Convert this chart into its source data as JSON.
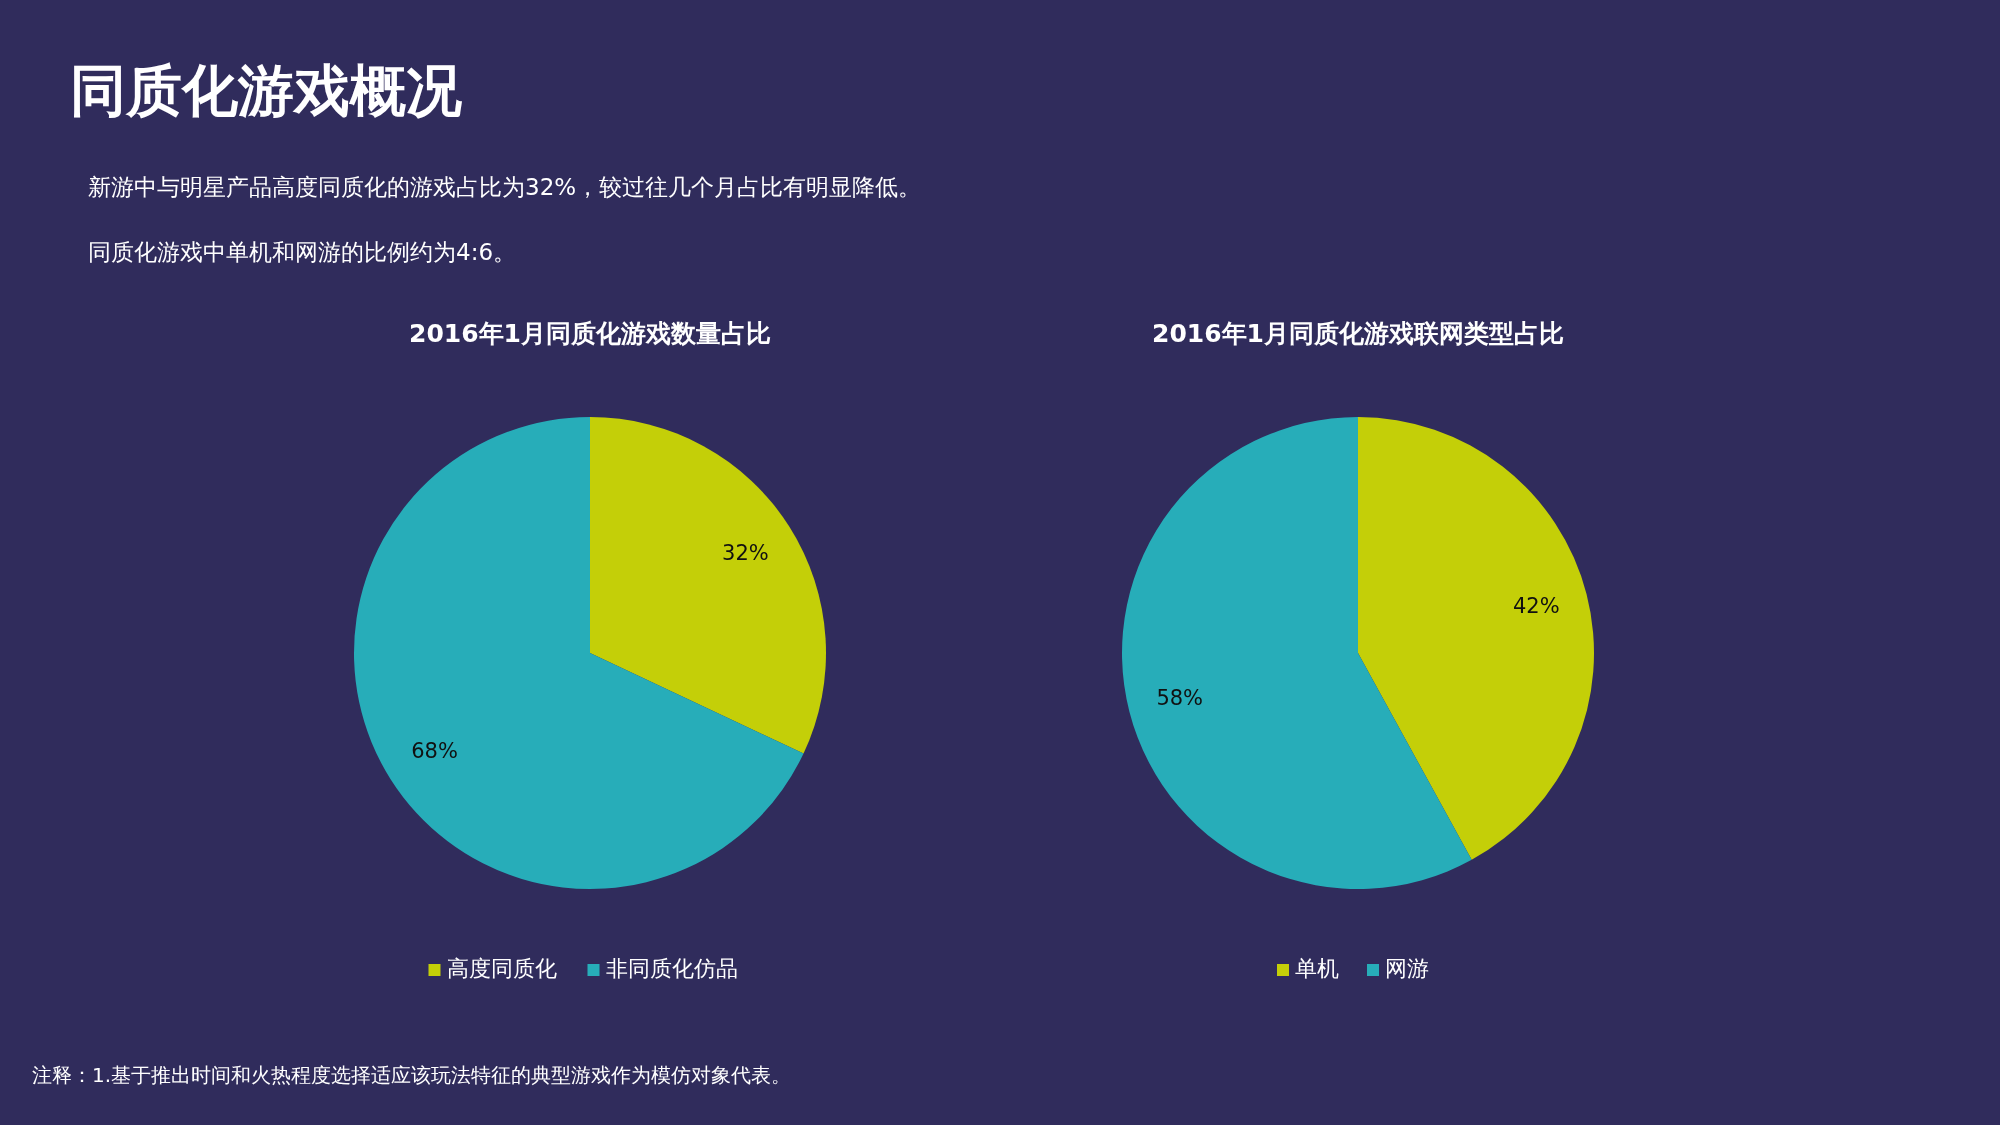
{
  "chart_data": [
    {
      "type": "other",
      "title": "同质化游戏概况",
      "annotations": [
        "新游中与明星产品高度同质化的游戏占比为32%，较过往几个月占比有明显降低。",
        "同质化游戏中单机和网游的比例约为4:6。",
        "注释：1.基于推出时间和火热程度选择适应该玩法特征的典型游戏作为模仿对象代表。"
      ]
    },
    {
      "type": "pie",
      "title": "2016年1月同质化游戏数量占比",
      "categories": [
        "高度同质化",
        "非同质化仿品"
      ],
      "values": [
        32,
        68
      ],
      "value_labels": [
        "32%",
        "68%"
      ],
      "colors": [
        "#c4cf08",
        "#27adb9"
      ],
      "legend": "bottom"
    },
    {
      "type": "pie",
      "title": "2016年1月同质化游戏联网类型占比",
      "categories": [
        "单机",
        "网游"
      ],
      "values": [
        42,
        58
      ],
      "value_labels": [
        "42%",
        "58%"
      ],
      "colors": [
        "#c4cf08",
        "#27adb9"
      ],
      "legend": "bottom"
    }
  ]
}
